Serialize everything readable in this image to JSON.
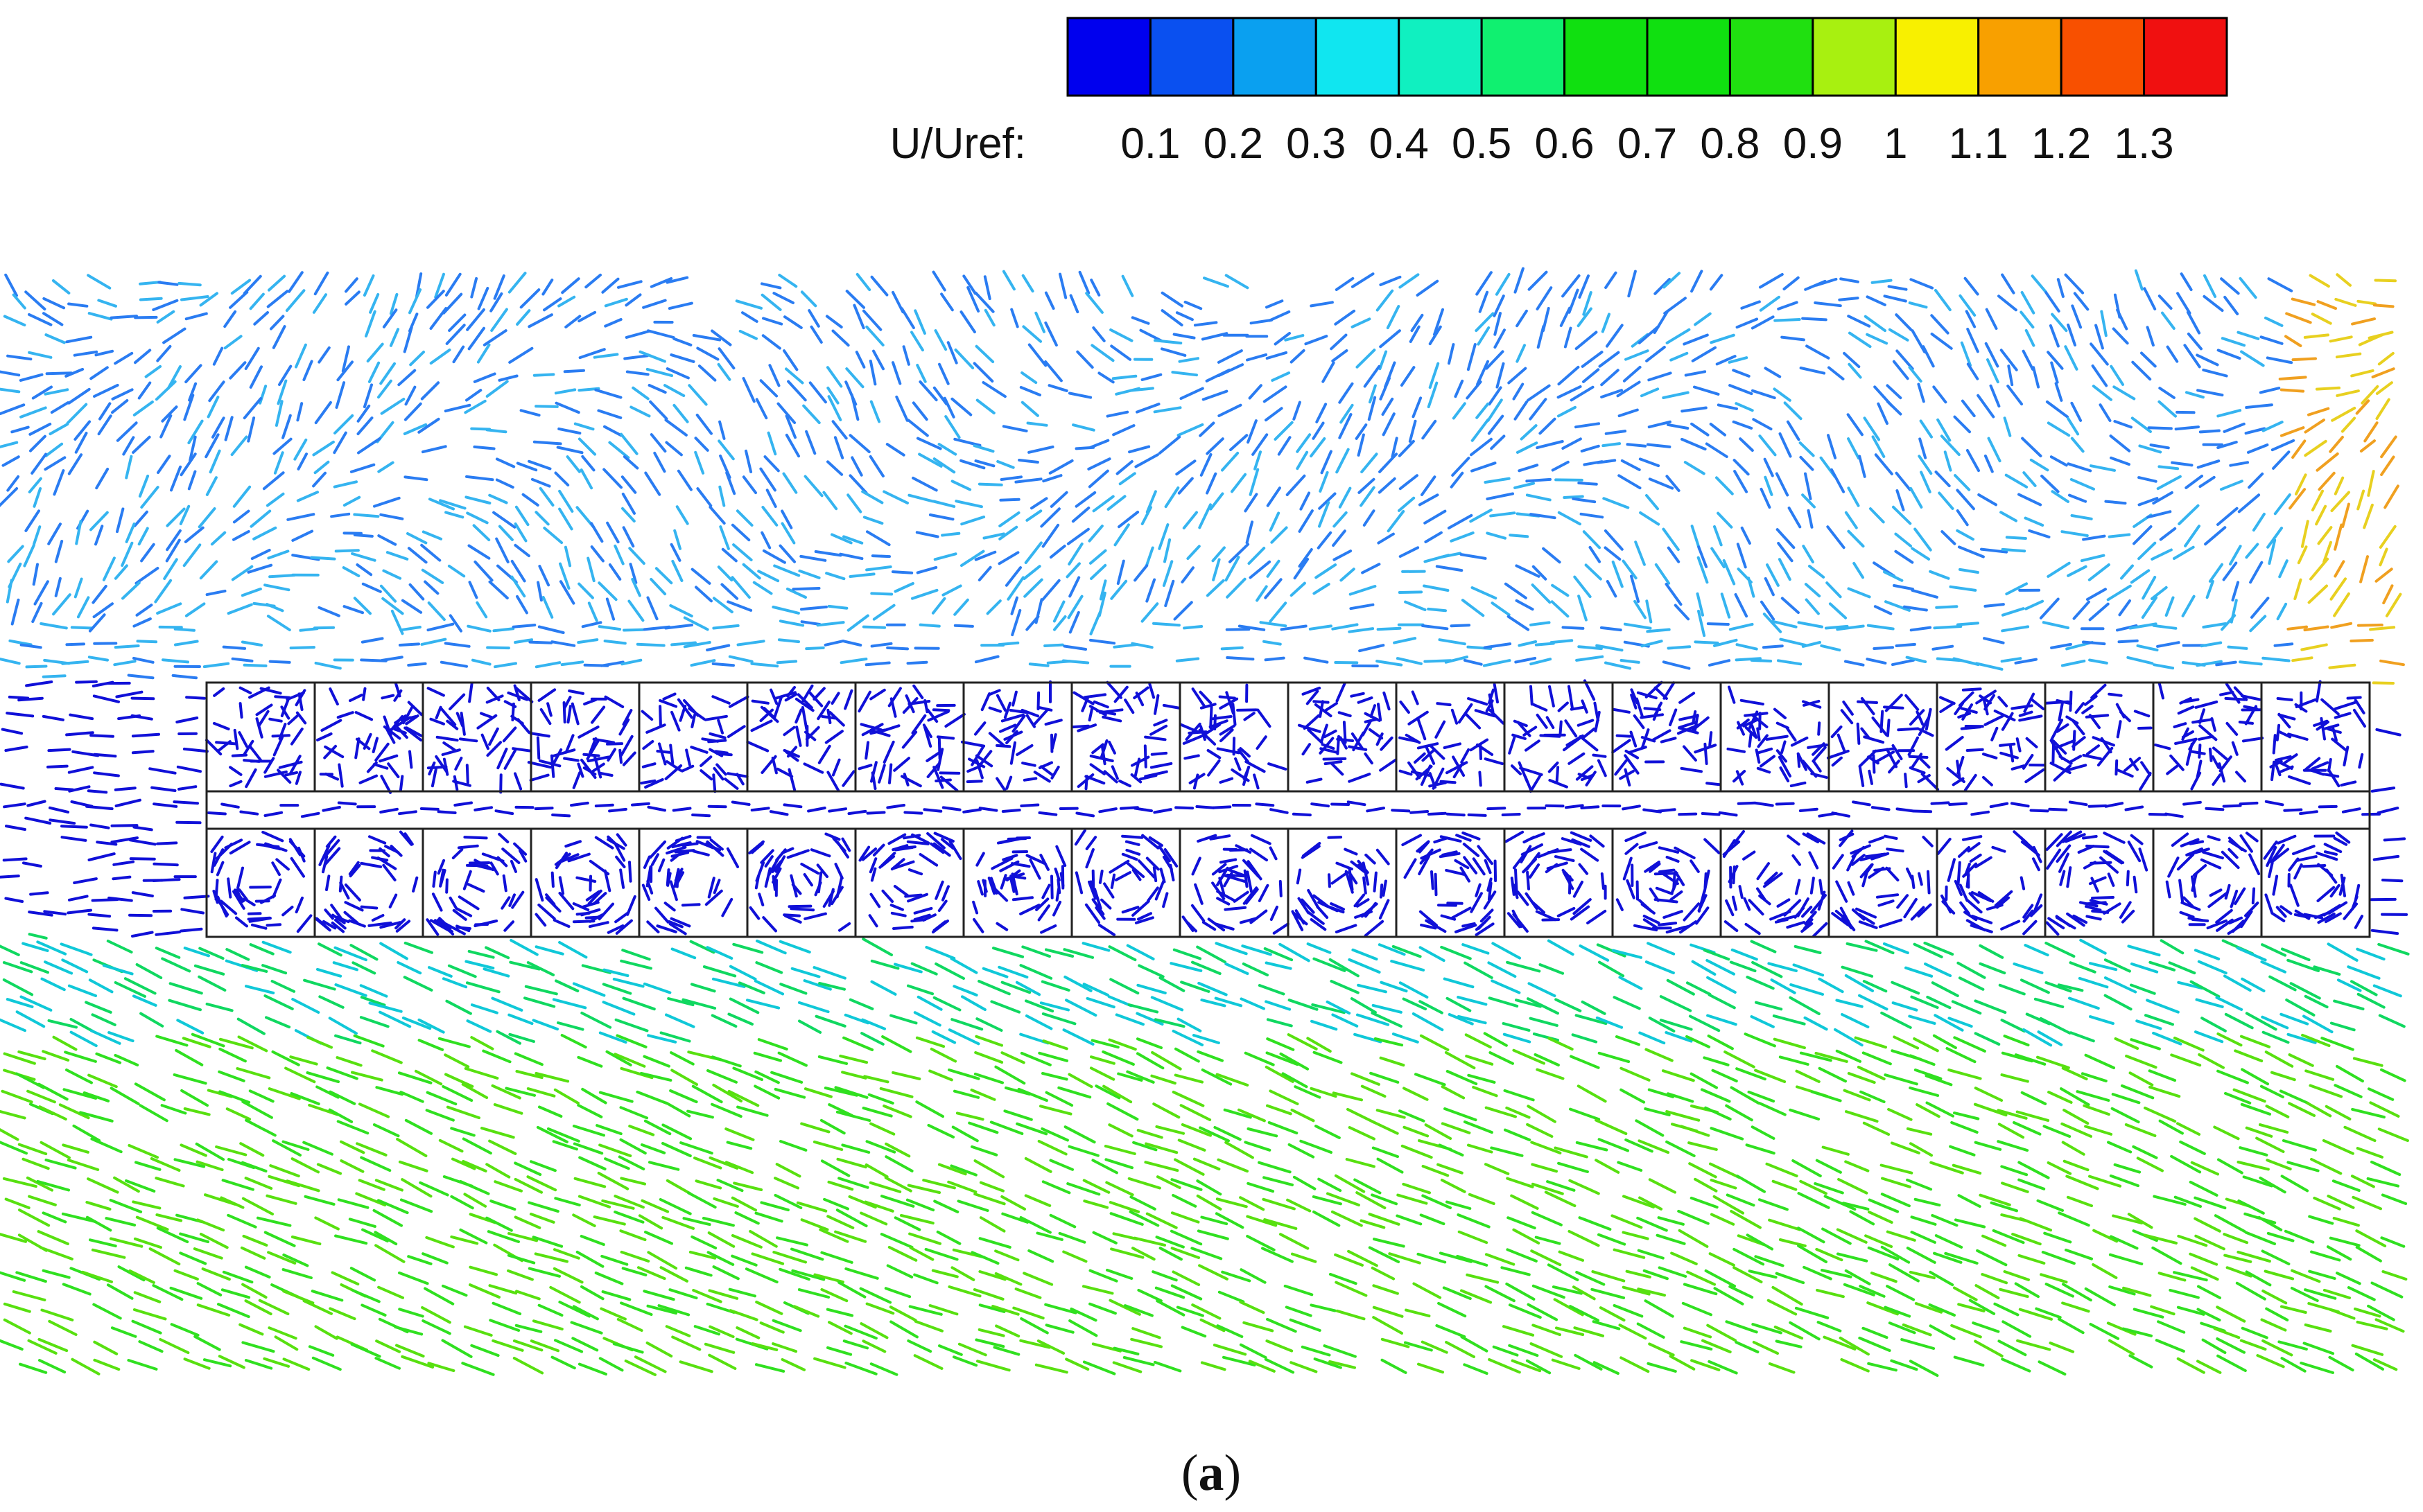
{
  "colorbar": {
    "title": "U/Uref:",
    "ticks": [
      "0.1",
      "0.2",
      "0.3",
      "0.4",
      "0.5",
      "0.6",
      "0.7",
      "0.8",
      "0.9",
      "1",
      "1.1",
      "1.2",
      "1.3"
    ],
    "colors": [
      "#0000ee",
      "#0a50f0",
      "#0aa0f0",
      "#10e6f0",
      "#10f0c0",
      "#10f070",
      "#10e010",
      "#10e010",
      "#20e010",
      "#a8f010",
      "#f8f000",
      "#f8a000",
      "#f85000",
      "#f01010"
    ]
  },
  "field": {
    "description_colors": {
      "low": "#1010d8",
      "upper_wake": "#2a7cf2",
      "upper_light": "#35b4f0",
      "lower_wake": "#10d860",
      "lower_far": "#30e020",
      "right_edge": "#f0a020"
    },
    "upper_row_cells": 20,
    "lower_row_cells": 20
  },
  "caption": {
    "prefix": "(",
    "letter": "a",
    "suffix": ")"
  }
}
